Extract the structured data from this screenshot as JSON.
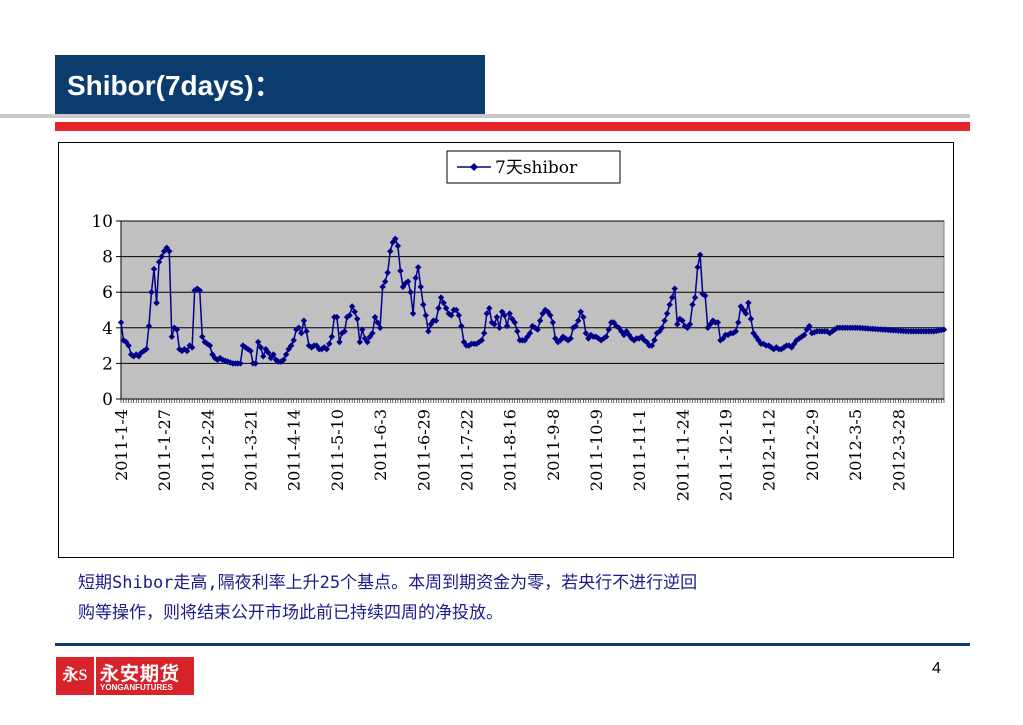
{
  "slide": {
    "title": "Shibor(7days)：",
    "caption_line1": "短期Shibor走高,隔夜利率上升25个基点。本周到期资金为零，若央行不进行逆回",
    "caption_line2": "购等操作，则将结束公开市场此前已持续四周的净投放。",
    "page_number": "4",
    "logo_mark": "永S",
    "logo_cn": "永安期货",
    "logo_en": "YONGANFUTURES"
  },
  "colors": {
    "title_bg": "#0a3d6e",
    "red_rule": "#e8232b",
    "series": "#00008b",
    "plot_bg": "#c0c0c0",
    "logo_red": "#d9232a"
  },
  "chart_data": {
    "type": "line",
    "legend": "7天shibor",
    "legend_position": "top-center",
    "series_name": "7天shibor",
    "marker": "diamond",
    "ylim": [
      0,
      10
    ],
    "yticks": [
      0,
      2,
      4,
      6,
      8,
      10
    ],
    "grid": "horizontal",
    "x_tick_labels": [
      "2011-1-4",
      "2011-1-27",
      "2011-2-24",
      "2011-3-21",
      "2011-4-14",
      "2011-5-10",
      "2011-6-3",
      "2011-6-29",
      "2011-7-22",
      "2011-8-16",
      "2011-9-8",
      "2011-10-9",
      "2011-11-1",
      "2011-11-24",
      "2011-12-19",
      "2012-1-12",
      "2012-2-9",
      "2012-3-5",
      "2012-3-28"
    ],
    "x_tick_positions": [
      0,
      17,
      34,
      51,
      68,
      85,
      102,
      119,
      136,
      153,
      170,
      187,
      204,
      221,
      238,
      255,
      272,
      289,
      306
    ],
    "n_points": 325,
    "anchors": [
      [
        0,
        4.3
      ],
      [
        1,
        3.3
      ],
      [
        2,
        3.2
      ],
      [
        3,
        3.0
      ],
      [
        4,
        2.5
      ],
      [
        5,
        2.4
      ],
      [
        6,
        2.5
      ],
      [
        7,
        2.4
      ],
      [
        8,
        2.6
      ],
      [
        9,
        2.7
      ],
      [
        10,
        2.8
      ],
      [
        11,
        4.1
      ],
      [
        12,
        6.0
      ],
      [
        13,
        7.3
      ],
      [
        14,
        5.4
      ],
      [
        15,
        7.7
      ],
      [
        16,
        8.0
      ],
      [
        17,
        8.3
      ],
      [
        18,
        8.5
      ],
      [
        19,
        8.3
      ],
      [
        20,
        3.5
      ],
      [
        21,
        4.0
      ],
      [
        22,
        3.9
      ],
      [
        23,
        2.8
      ],
      [
        24,
        2.7
      ],
      [
        25,
        2.8
      ],
      [
        26,
        2.7
      ],
      [
        27,
        3.0
      ],
      [
        28,
        2.9
      ],
      [
        29,
        6.1
      ],
      [
        30,
        6.2
      ],
      [
        31,
        6.1
      ],
      [
        32,
        3.5
      ],
      [
        33,
        3.2
      ],
      [
        34,
        3.1
      ],
      [
        35,
        3.0
      ],
      [
        36,
        2.5
      ],
      [
        37,
        2.3
      ],
      [
        38,
        2.2
      ],
      [
        39,
        2.3
      ],
      [
        40,
        2.2
      ],
      [
        42,
        2.1
      ],
      [
        44,
        2.0
      ],
      [
        47,
        2.0
      ],
      [
        48,
        3.0
      ],
      [
        49,
        2.9
      ],
      [
        50,
        2.8
      ],
      [
        51,
        2.7
      ],
      [
        52,
        2.0
      ],
      [
        53,
        2.0
      ],
      [
        54,
        3.2
      ],
      [
        55,
        2.9
      ],
      [
        56,
        2.4
      ],
      [
        57,
        2.8
      ],
      [
        58,
        2.6
      ],
      [
        59,
        2.3
      ],
      [
        60,
        2.5
      ],
      [
        61,
        2.2
      ],
      [
        62,
        2.1
      ],
      [
        63,
        2.1
      ],
      [
        64,
        2.2
      ],
      [
        65,
        2.5
      ],
      [
        66,
        2.8
      ],
      [
        67,
        3.0
      ],
      [
        68,
        3.3
      ],
      [
        69,
        3.9
      ],
      [
        70,
        4.0
      ],
      [
        71,
        3.7
      ],
      [
        72,
        4.4
      ],
      [
        73,
        3.8
      ],
      [
        74,
        3.0
      ],
      [
        75,
        2.9
      ],
      [
        76,
        3.0
      ],
      [
        77,
        3.0
      ],
      [
        78,
        2.8
      ],
      [
        79,
        2.8
      ],
      [
        80,
        2.9
      ],
      [
        81,
        2.8
      ],
      [
        82,
        3.1
      ],
      [
        83,
        3.5
      ],
      [
        84,
        4.6
      ],
      [
        85,
        4.6
      ],
      [
        86,
        3.2
      ],
      [
        87,
        3.7
      ],
      [
        88,
        3.8
      ],
      [
        89,
        4.6
      ],
      [
        90,
        4.7
      ],
      [
        91,
        5.2
      ],
      [
        92,
        4.9
      ],
      [
        93,
        4.5
      ],
      [
        94,
        3.2
      ],
      [
        95,
        3.9
      ],
      [
        96,
        3.4
      ],
      [
        97,
        3.2
      ],
      [
        98,
        3.5
      ],
      [
        99,
        3.7
      ],
      [
        100,
        4.6
      ],
      [
        101,
        4.3
      ],
      [
        102,
        4.0
      ],
      [
        103,
        6.3
      ],
      [
        104,
        6.6
      ],
      [
        105,
        7.1
      ],
      [
        106,
        8.3
      ],
      [
        107,
        8.8
      ],
      [
        108,
        9.0
      ],
      [
        109,
        8.6
      ],
      [
        110,
        7.2
      ],
      [
        111,
        6.3
      ],
      [
        112,
        6.5
      ],
      [
        113,
        6.6
      ],
      [
        114,
        6.0
      ],
      [
        115,
        4.8
      ],
      [
        116,
        6.8
      ],
      [
        117,
        7.4
      ],
      [
        118,
        6.3
      ],
      [
        119,
        5.3
      ],
      [
        120,
        4.7
      ],
      [
        121,
        3.8
      ],
      [
        122,
        4.2
      ],
      [
        123,
        4.4
      ],
      [
        124,
        4.4
      ],
      [
        125,
        5.1
      ],
      [
        126,
        5.7
      ],
      [
        127,
        5.4
      ],
      [
        128,
        5.1
      ],
      [
        129,
        4.8
      ],
      [
        130,
        4.7
      ],
      [
        131,
        5.0
      ],
      [
        132,
        5.0
      ],
      [
        133,
        4.7
      ],
      [
        134,
        4.1
      ],
      [
        135,
        3.2
      ],
      [
        136,
        3.0
      ],
      [
        137,
        3.0
      ],
      [
        138,
        3.1
      ],
      [
        139,
        3.1
      ],
      [
        140,
        3.1
      ],
      [
        141,
        3.2
      ],
      [
        142,
        3.3
      ],
      [
        143,
        3.7
      ],
      [
        144,
        4.8
      ],
      [
        145,
        5.1
      ],
      [
        146,
        4.3
      ],
      [
        147,
        4.2
      ],
      [
        148,
        4.6
      ],
      [
        149,
        4.0
      ],
      [
        150,
        4.9
      ],
      [
        151,
        4.7
      ],
      [
        152,
        4.1
      ],
      [
        153,
        4.8
      ],
      [
        154,
        4.5
      ],
      [
        155,
        4.3
      ],
      [
        156,
        3.8
      ],
      [
        157,
        3.3
      ],
      [
        158,
        3.3
      ],
      [
        159,
        3.3
      ],
      [
        160,
        3.5
      ],
      [
        161,
        3.7
      ],
      [
        162,
        4.1
      ],
      [
        163,
        4.0
      ],
      [
        164,
        3.9
      ],
      [
        165,
        4.4
      ],
      [
        166,
        4.8
      ],
      [
        167,
        5.0
      ],
      [
        168,
        4.9
      ],
      [
        169,
        4.7
      ],
      [
        170,
        4.3
      ],
      [
        171,
        3.4
      ],
      [
        172,
        3.2
      ],
      [
        173,
        3.3
      ],
      [
        174,
        3.5
      ],
      [
        175,
        3.4
      ],
      [
        176,
        3.3
      ],
      [
        177,
        3.4
      ],
      [
        178,
        4.0
      ],
      [
        179,
        4.1
      ],
      [
        180,
        4.4
      ],
      [
        181,
        4.9
      ],
      [
        182,
        4.6
      ],
      [
        183,
        3.7
      ],
      [
        184,
        3.4
      ],
      [
        185,
        3.6
      ],
      [
        186,
        3.5
      ],
      [
        187,
        3.5
      ],
      [
        188,
        3.4
      ],
      [
        189,
        3.3
      ],
      [
        190,
        3.4
      ],
      [
        191,
        3.5
      ],
      [
        192,
        3.9
      ],
      [
        193,
        4.3
      ],
      [
        194,
        4.3
      ],
      [
        195,
        4.1
      ],
      [
        196,
        4.0
      ],
      [
        197,
        3.8
      ],
      [
        198,
        3.6
      ],
      [
        199,
        3.8
      ],
      [
        200,
        3.6
      ],
      [
        201,
        3.4
      ],
      [
        202,
        3.3
      ],
      [
        203,
        3.4
      ],
      [
        204,
        3.4
      ],
      [
        205,
        3.5
      ],
      [
        206,
        3.3
      ],
      [
        207,
        3.2
      ],
      [
        208,
        3.0
      ],
      [
        209,
        3.0
      ],
      [
        210,
        3.3
      ],
      [
        211,
        3.7
      ],
      [
        212,
        3.8
      ],
      [
        213,
        4.0
      ],
      [
        214,
        4.4
      ],
      [
        215,
        4.8
      ],
      [
        216,
        5.3
      ],
      [
        217,
        5.7
      ],
      [
        218,
        6.2
      ],
      [
        219,
        4.2
      ],
      [
        220,
        4.5
      ],
      [
        221,
        4.4
      ],
      [
        222,
        4.1
      ],
      [
        223,
        4.0
      ],
      [
        224,
        4.2
      ],
      [
        225,
        5.3
      ],
      [
        226,
        5.7
      ],
      [
        227,
        7.4
      ],
      [
        228,
        8.1
      ],
      [
        229,
        5.9
      ],
      [
        230,
        5.8
      ],
      [
        231,
        4.0
      ],
      [
        232,
        4.2
      ],
      [
        233,
        4.4
      ],
      [
        234,
        4.3
      ],
      [
        235,
        4.3
      ],
      [
        236,
        3.3
      ],
      [
        237,
        3.4
      ],
      [
        238,
        3.6
      ],
      [
        239,
        3.6
      ],
      [
        240,
        3.7
      ],
      [
        241,
        3.7
      ],
      [
        242,
        3.8
      ],
      [
        243,
        4.3
      ],
      [
        244,
        5.2
      ],
      [
        245,
        5.0
      ],
      [
        246,
        4.8
      ],
      [
        247,
        5.4
      ],
      [
        248,
        4.5
      ],
      [
        249,
        3.7
      ],
      [
        250,
        3.5
      ],
      [
        251,
        3.3
      ],
      [
        252,
        3.1
      ],
      [
        253,
        3.1
      ],
      [
        254,
        3.0
      ],
      [
        255,
        3.0
      ],
      [
        256,
        2.9
      ],
      [
        257,
        2.8
      ],
      [
        258,
        2.9
      ],
      [
        259,
        2.8
      ],
      [
        260,
        2.8
      ],
      [
        261,
        2.9
      ],
      [
        262,
        3.0
      ],
      [
        263,
        3.0
      ],
      [
        264,
        2.9
      ],
      [
        265,
        3.1
      ],
      [
        266,
        3.3
      ],
      [
        267,
        3.4
      ],
      [
        268,
        3.5
      ],
      [
        269,
        3.6
      ],
      [
        270,
        3.9
      ],
      [
        271,
        4.1
      ],
      [
        272,
        3.7
      ],
      [
        274,
        3.8
      ],
      [
        278,
        3.8
      ],
      [
        279,
        3.7
      ],
      [
        280,
        3.8
      ],
      [
        281,
        3.9
      ],
      [
        282,
        4.0
      ],
      [
        290,
        4.0
      ],
      [
        300,
        3.9
      ],
      [
        310,
        3.8
      ],
      [
        320,
        3.8
      ],
      [
        324,
        3.9
      ]
    ]
  }
}
